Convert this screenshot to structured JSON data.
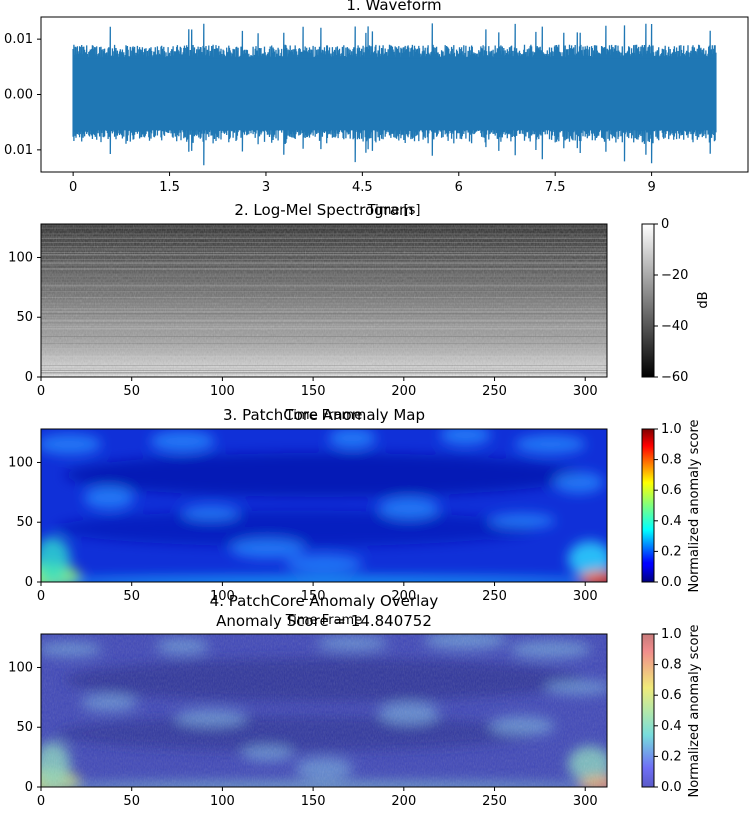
{
  "chart_data": [
    {
      "type": "line",
      "title": "1. Waveform",
      "xlabel": "Time [s]",
      "ylabel": "",
      "xlim": [
        -0.5,
        10.5
      ],
      "ylim": [
        -0.014,
        0.014
      ],
      "x_ticks": [
        "0",
        "1.5",
        "3",
        "4.5",
        "6",
        "7.5",
        "9"
      ],
      "x_tick_values": [
        0,
        1.5,
        3,
        4.5,
        6,
        7.5,
        9
      ],
      "y_ticks": [
        "0.01",
        "0.00",
        "0.01"
      ],
      "y_tick_values": [
        0.01,
        0.0,
        -0.01
      ],
      "signal": {
        "start": 0,
        "end": 10.0,
        "typical_amplitude": 0.009,
        "peak_amplitude": 0.013
      },
      "color": "#1f77b4"
    },
    {
      "type": "heatmap",
      "title": "2. Log-Mel Spectrogram",
      "xlabel": "Time Frame",
      "ylabel": "",
      "x_ticks": [
        "0",
        "50",
        "100",
        "150",
        "200",
        "250",
        "300"
      ],
      "x_tick_values": [
        0,
        50,
        100,
        150,
        200,
        250,
        300
      ],
      "y_ticks": [
        "0",
        "50",
        "100"
      ],
      "y_tick_values": [
        0,
        50,
        100
      ],
      "xlim": [
        0,
        312
      ],
      "ylim": [
        0,
        128
      ],
      "colormap": "gray",
      "colorbar": {
        "label": "dB",
        "ticks": [
          "0",
          "−20",
          "−40",
          "−60"
        ],
        "tick_values": [
          0,
          -20,
          -40,
          -60
        ],
        "range": [
          -60,
          0
        ]
      }
    },
    {
      "type": "heatmap",
      "title": "3. PatchCore Anomaly Map",
      "xlabel": "Time Frame",
      "ylabel": "",
      "x_ticks": [
        "0",
        "50",
        "100",
        "150",
        "200",
        "250",
        "300"
      ],
      "x_tick_values": [
        0,
        50,
        100,
        150,
        200,
        250,
        300
      ],
      "y_ticks": [
        "0",
        "50",
        "100"
      ],
      "y_tick_values": [
        0,
        50,
        100
      ],
      "xlim": [
        0,
        312
      ],
      "ylim": [
        0,
        128
      ],
      "colormap": "jet",
      "colorbar": {
        "label": "Normalized anomaly score",
        "ticks": [
          "0.0",
          "0.2",
          "0.4",
          "0.6",
          "0.8",
          "1.0"
        ],
        "tick_values": [
          0,
          0.2,
          0.4,
          0.6,
          0.8,
          1.0
        ],
        "range": [
          0,
          1
        ]
      }
    },
    {
      "type": "heatmap",
      "title": "4. PatchCore Anomaly Overlay",
      "subtitle": "Anomaly Score = 14.840752",
      "xlabel": "",
      "ylabel": "",
      "x_ticks": [
        "0",
        "50",
        "100",
        "150",
        "200",
        "250",
        "300"
      ],
      "x_tick_values": [
        0,
        50,
        100,
        150,
        200,
        250,
        300
      ],
      "y_ticks": [
        "0",
        "50",
        "100"
      ],
      "y_tick_values": [
        0,
        50,
        100
      ],
      "xlim": [
        0,
        312
      ],
      "ylim": [
        0,
        128
      ],
      "colormap": "jet (overlay on gray)",
      "colorbar": {
        "label": "Normalized anomaly score",
        "ticks": [
          "0.0",
          "0.2",
          "0.4",
          "0.6",
          "0.8",
          "1.0"
        ],
        "tick_values": [
          0,
          0.2,
          0.4,
          0.6,
          0.8,
          1.0
        ],
        "range": [
          0,
          1
        ]
      }
    }
  ]
}
